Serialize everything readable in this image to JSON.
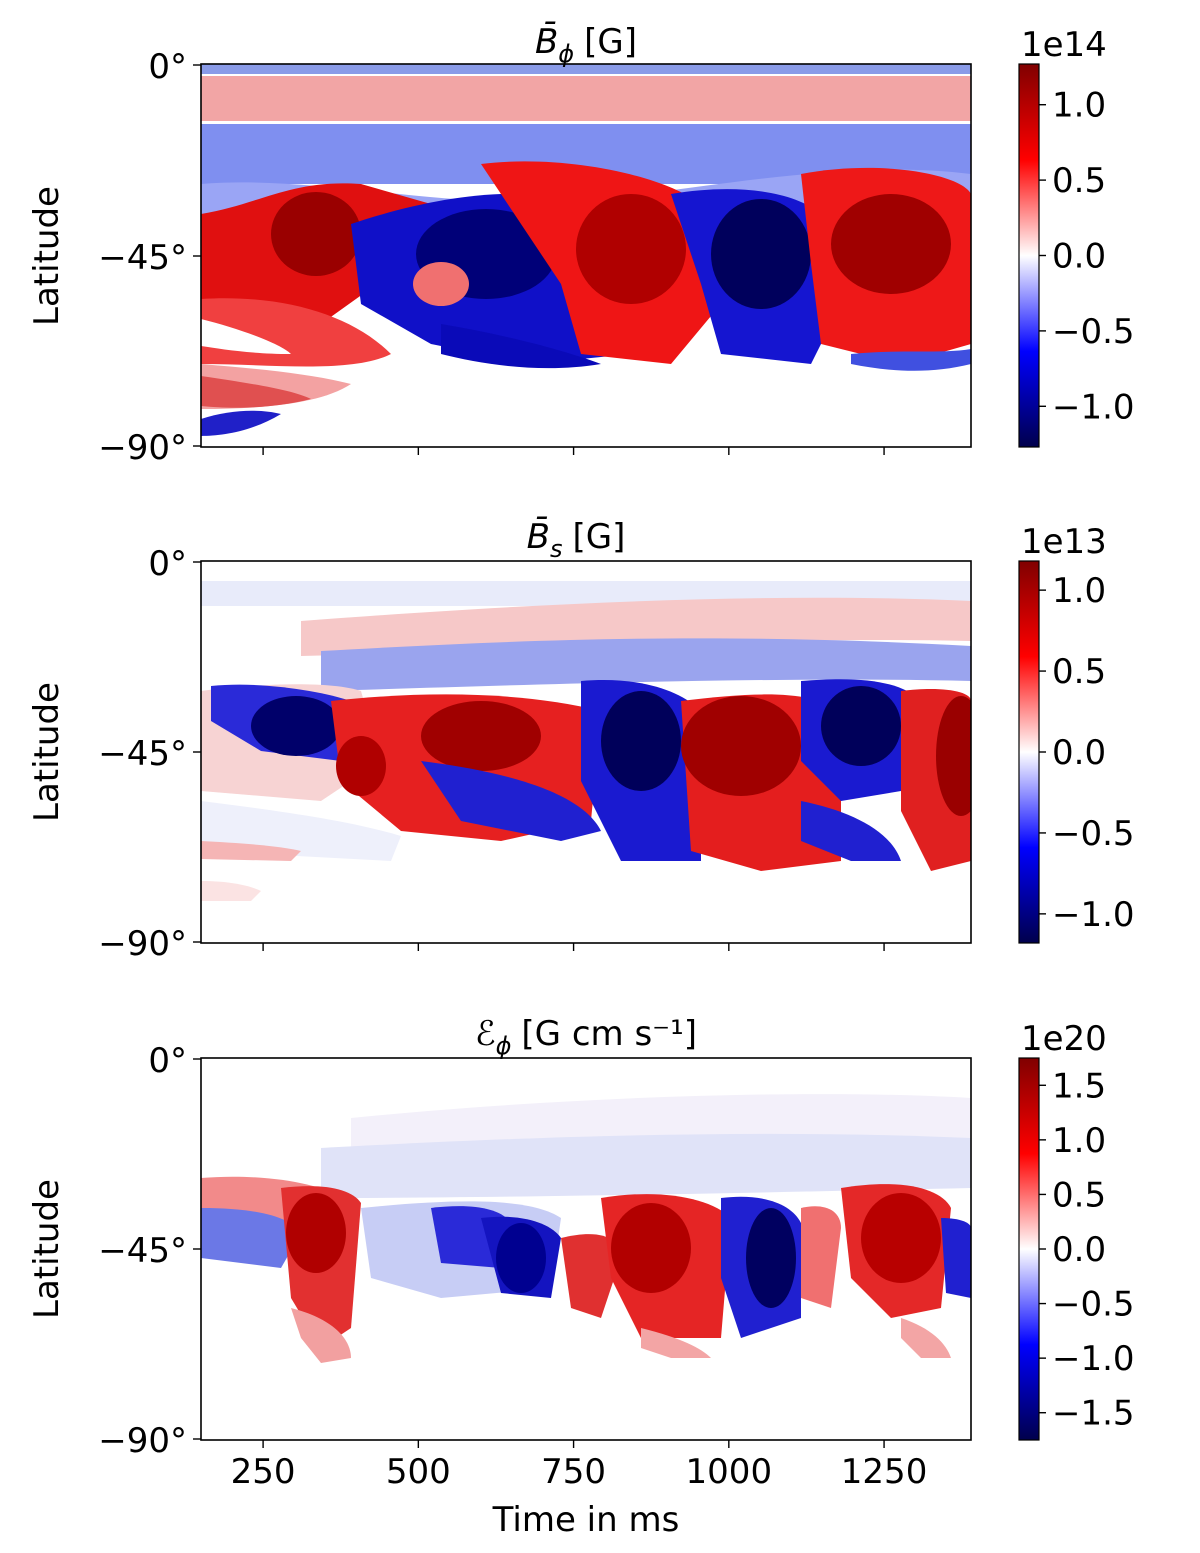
{
  "chart_data": [
    {
      "type": "heatmap",
      "title_symbol": "B̄",
      "title_sub": "ϕ",
      "title_unit": "[G]",
      "xlabel": "",
      "ylabel": "Latitude",
      "xlim": [
        150,
        1390
      ],
      "ylim": [
        -90,
        0
      ],
      "xticks": [
        250,
        500,
        750,
        1000,
        1250
      ],
      "yticks": [
        "0°",
        "−45°",
        "−90°"
      ],
      "colorbar": {
        "offset": "1e14",
        "range": [
          -1.27,
          1.27
        ],
        "ticks": [
          1.0,
          0.5,
          0.0,
          -0.5,
          -1.0
        ],
        "tick_labels": [
          "1.0",
          "0.5",
          "0.0",
          "−0.5",
          "−1.0"
        ],
        "colormap": "seismic"
      },
      "features": [
        {
          "x": 260,
          "y": -19,
          "value": 0.5
        },
        {
          "x": 600,
          "y": -25,
          "value": -0.5
        },
        {
          "x": 1100,
          "y": -18,
          "value": -0.4
        },
        {
          "x": 1320,
          "y": -6,
          "value": 0.35
        },
        {
          "x": 300,
          "y": -37,
          "value": 1.0
        },
        {
          "x": 510,
          "y": -40,
          "value": -1.0
        },
        {
          "x": 620,
          "y": -44,
          "value": -1.0
        },
        {
          "x": 880,
          "y": -40,
          "value": 1.0
        },
        {
          "x": 980,
          "y": -45,
          "value": -1.1
        },
        {
          "x": 1060,
          "y": -42,
          "value": -1.2
        },
        {
          "x": 1260,
          "y": -40,
          "value": 1.0
        },
        {
          "x": 400,
          "y": -52,
          "value": 0.6
        },
        {
          "x": 250,
          "y": -62,
          "value": 0.8
        },
        {
          "x": 185,
          "y": -77,
          "value": -0.8
        },
        {
          "x": 540,
          "y": -62,
          "value": -0.8
        }
      ]
    },
    {
      "type": "heatmap",
      "title_symbol": "B̄",
      "title_sub": "s",
      "title_unit": "[G]",
      "xlabel": "",
      "ylabel": "Latitude",
      "xlim": [
        150,
        1390
      ],
      "ylim": [
        -90,
        0
      ],
      "xticks": [
        250,
        500,
        750,
        1000,
        1250
      ],
      "yticks": [
        "0°",
        "−45°",
        "−90°"
      ],
      "colorbar": {
        "offset": "1e13",
        "range": [
          -1.18,
          1.18
        ],
        "ticks": [
          1.0,
          0.5,
          0.0,
          -0.5,
          -1.0
        ],
        "tick_labels": [
          "1.0",
          "0.5",
          "0.0",
          "−0.5",
          "−1.0"
        ],
        "colormap": "seismic"
      },
      "features": [
        {
          "x": 290,
          "y": -38,
          "value": -0.9
        },
        {
          "x": 420,
          "y": -42,
          "value": 0.7
        },
        {
          "x": 560,
          "y": -40,
          "value": 0.9
        },
        {
          "x": 800,
          "y": -45,
          "value": -1.0
        },
        {
          "x": 900,
          "y": -44,
          "value": 0.9
        },
        {
          "x": 1030,
          "y": -50,
          "value": 0.8
        },
        {
          "x": 1180,
          "y": -42,
          "value": -0.9
        },
        {
          "x": 1360,
          "y": -44,
          "value": 1.0
        },
        {
          "x": 700,
          "y": -55,
          "value": -0.6
        },
        {
          "x": 1200,
          "y": -58,
          "value": 0.6
        }
      ]
    },
    {
      "type": "heatmap",
      "title_symbol": "ℰ",
      "title_sub": "ϕ",
      "title_unit": "[G cm s⁻¹]",
      "xlabel": "Time in ms",
      "ylabel": "Latitude",
      "xlim": [
        150,
        1390
      ],
      "ylim": [
        -90,
        0
      ],
      "xticks": [
        250,
        500,
        750,
        1000,
        1250
      ],
      "yticks": [
        "0°",
        "−45°",
        "−90°"
      ],
      "colorbar": {
        "offset": "1e20",
        "range": [
          -1.75,
          1.75
        ],
        "ticks": [
          1.5,
          1.0,
          0.5,
          0.0,
          -0.5,
          -1.0,
          -1.5
        ],
        "tick_labels": [
          "1.5",
          "1.0",
          "0.5",
          "0.0",
          "−0.5",
          "−1.0",
          "−1.5"
        ],
        "colormap": "seismic"
      },
      "features": [
        {
          "x": 320,
          "y": -45,
          "value": 1.2
        },
        {
          "x": 480,
          "y": -47,
          "value": -0.9
        },
        {
          "x": 640,
          "y": -48,
          "value": -1.0
        },
        {
          "x": 880,
          "y": -47,
          "value": 1.2
        },
        {
          "x": 1020,
          "y": -49,
          "value": -1.1
        },
        {
          "x": 1080,
          "y": -46,
          "value": -1.4
        },
        {
          "x": 1260,
          "y": -47,
          "value": 1.1
        },
        {
          "x": 1350,
          "y": -50,
          "value": -0.8
        }
      ]
    }
  ]
}
